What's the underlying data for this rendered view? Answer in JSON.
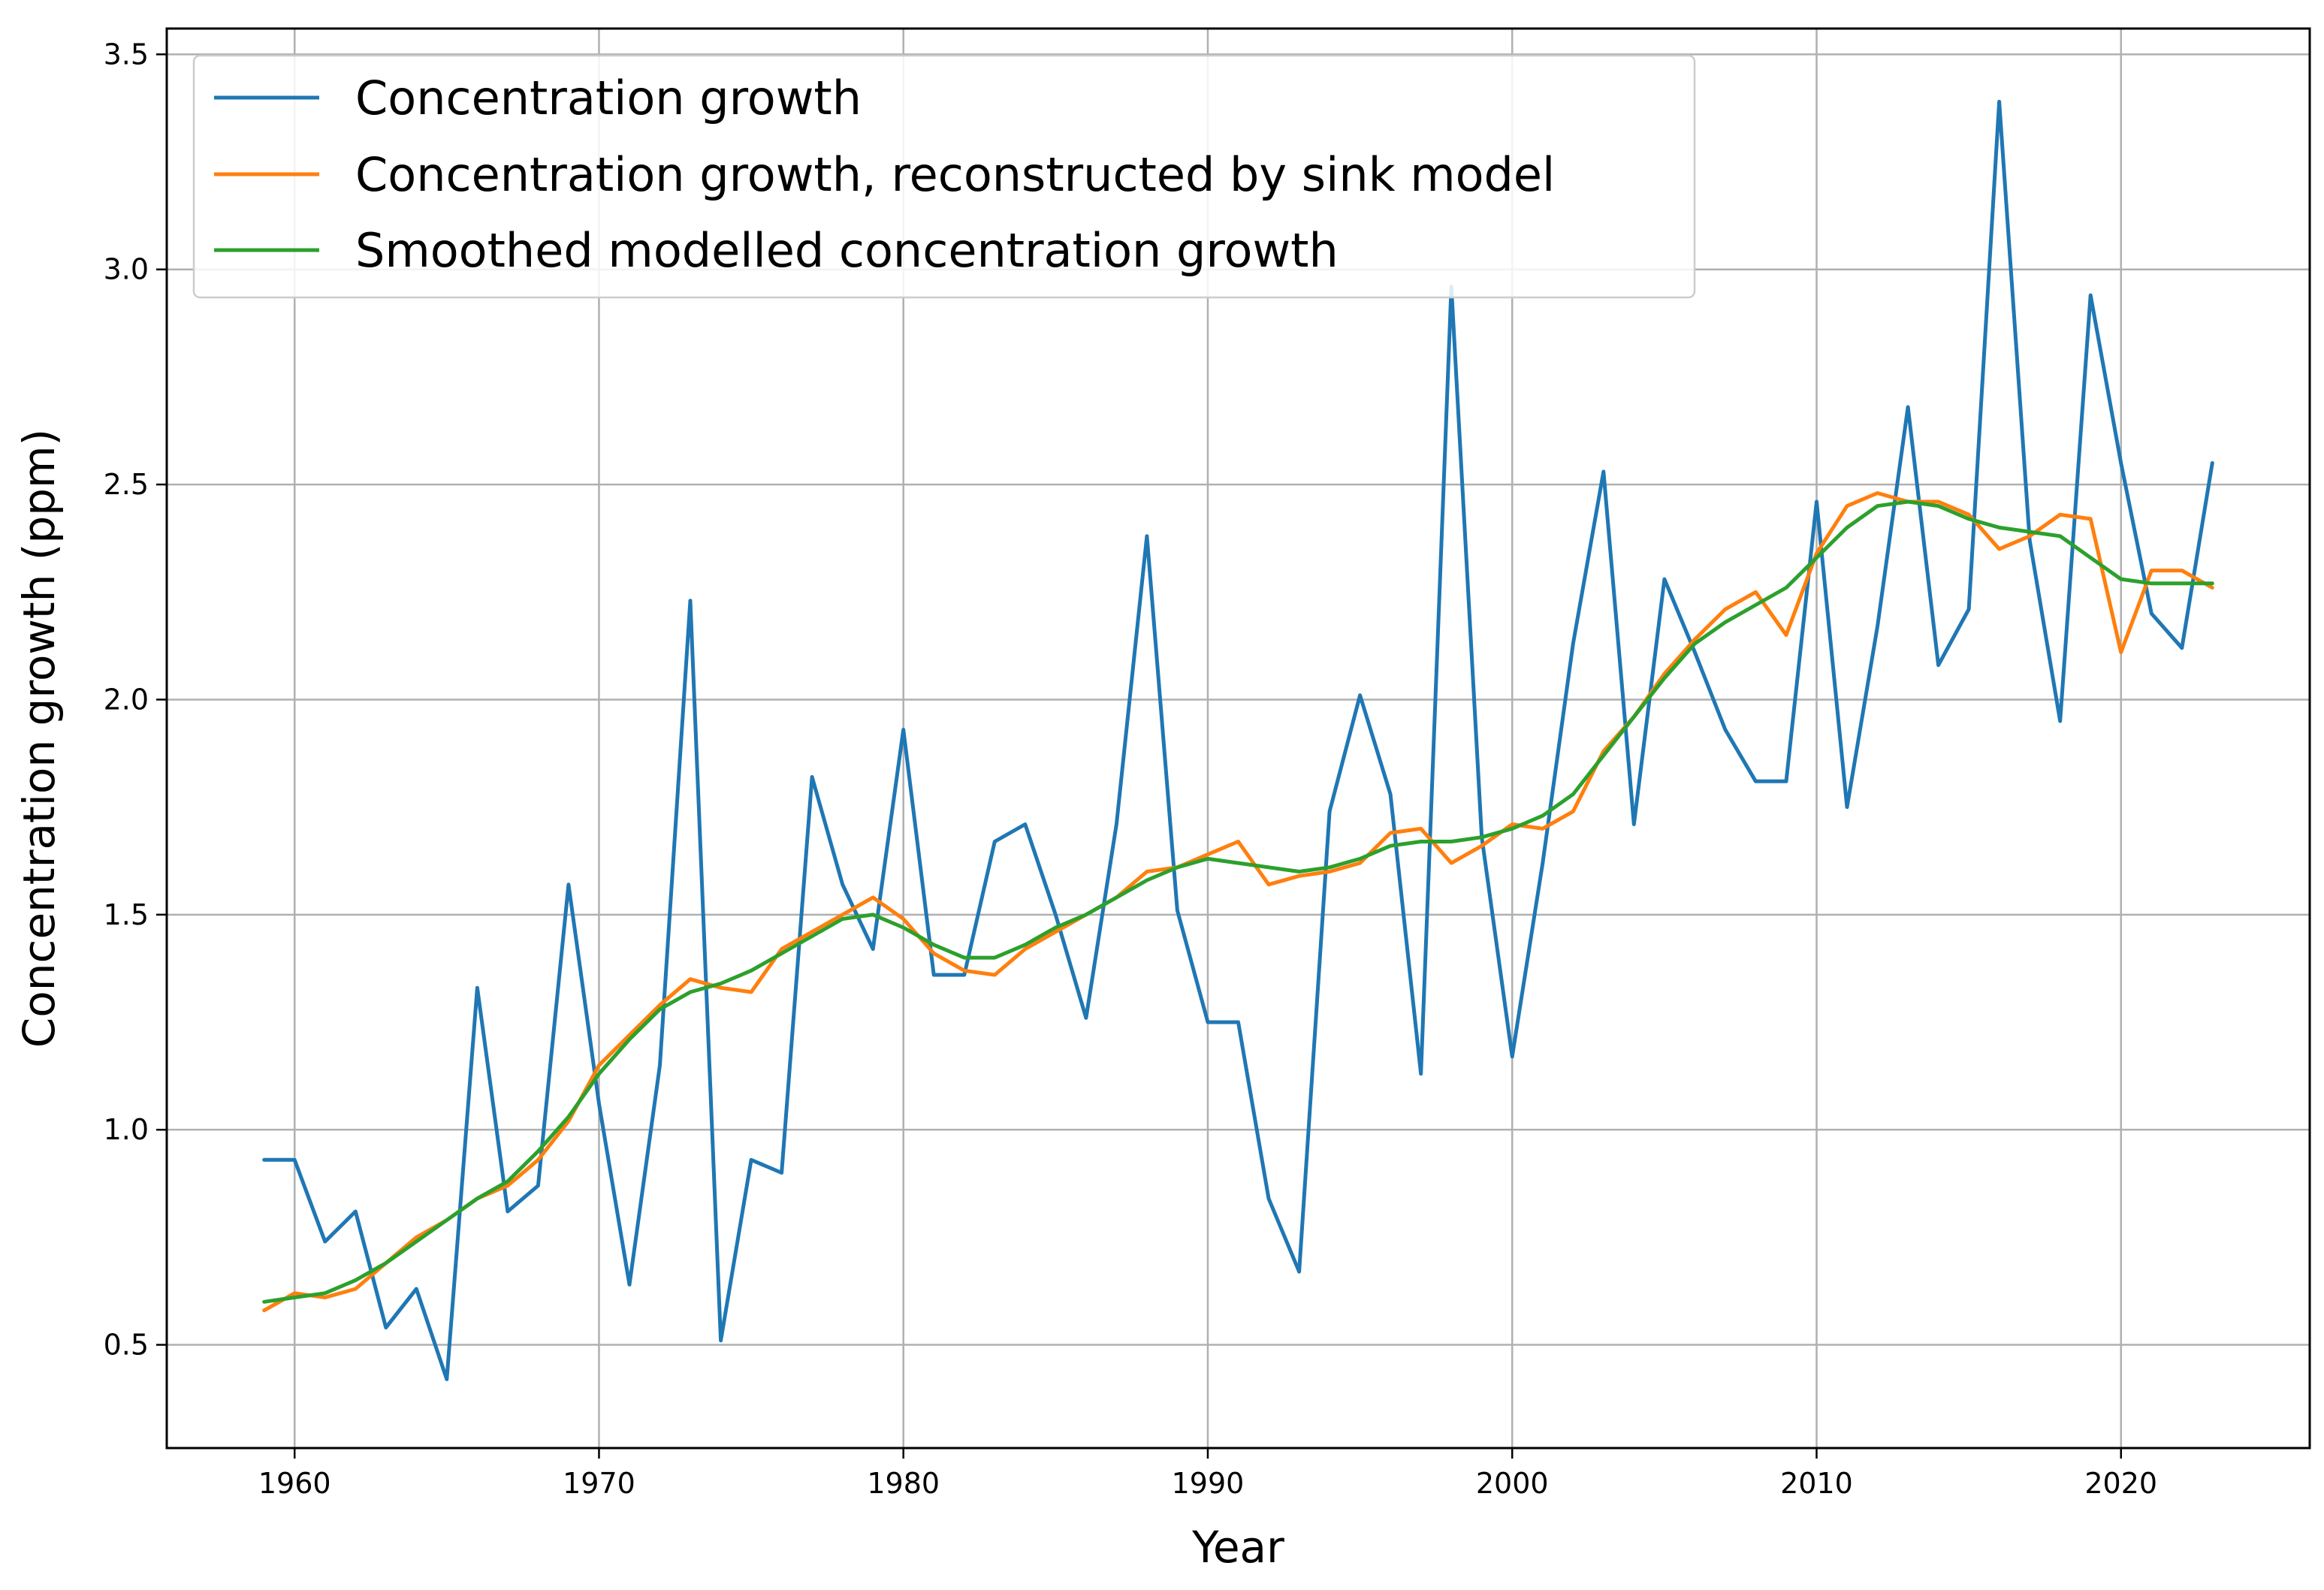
{
  "chart_data": {
    "type": "line",
    "title": "",
    "xlabel": "Year",
    "ylabel": "Concentration growth (ppm)",
    "xlim": [
      1955.8,
      2026.2
    ],
    "ylim": [
      0.26,
      3.56
    ],
    "grid": true,
    "legend_position": "top-left",
    "xticks": [
      1960,
      1970,
      1980,
      1990,
      2000,
      2010,
      2020
    ],
    "xtick_labels": [
      "1960",
      "1970",
      "1980",
      "1990",
      "2000",
      "2010",
      "2020"
    ],
    "yticks": [
      0.5,
      1.0,
      1.5,
      2.0,
      2.5,
      3.0,
      3.5
    ],
    "ytick_labels": [
      "0.5",
      "1.0",
      "1.5",
      "2.0",
      "2.5",
      "3.0",
      "3.5"
    ],
    "x": [
      1959,
      1960,
      1961,
      1962,
      1963,
      1964,
      1965,
      1966,
      1967,
      1968,
      1969,
      1970,
      1971,
      1972,
      1973,
      1974,
      1975,
      1976,
      1977,
      1978,
      1979,
      1980,
      1981,
      1982,
      1983,
      1984,
      1985,
      1986,
      1987,
      1988,
      1989,
      1990,
      1991,
      1992,
      1993,
      1994,
      1995,
      1996,
      1997,
      1998,
      1999,
      2000,
      2001,
      2002,
      2003,
      2004,
      2005,
      2006,
      2007,
      2008,
      2009,
      2010,
      2011,
      2012,
      2013,
      2014,
      2015,
      2016,
      2017,
      2018,
      2019,
      2020,
      2021,
      2022,
      2023
    ],
    "series": [
      {
        "name": "Concentration growth",
        "color": "#1f77b4",
        "values": [
          0.93,
          0.93,
          0.74,
          0.81,
          0.54,
          0.63,
          0.42,
          1.33,
          0.81,
          0.87,
          1.57,
          1.06,
          0.64,
          1.15,
          2.23,
          0.51,
          0.93,
          0.9,
          1.82,
          1.57,
          1.42,
          1.93,
          1.36,
          1.36,
          1.67,
          1.71,
          1.5,
          1.26,
          1.71,
          2.38,
          1.51,
          1.25,
          1.25,
          0.84,
          0.67,
          1.74,
          2.01,
          1.78,
          1.13,
          2.96,
          1.68,
          1.17,
          1.62,
          2.13,
          2.53,
          1.71,
          2.28,
          2.11,
          1.93,
          1.81,
          1.81,
          2.46,
          1.75,
          2.17,
          2.68,
          2.08,
          2.21,
          3.39,
          2.37,
          1.95,
          2.94,
          2.55,
          2.2,
          2.12,
          2.55
        ]
      },
      {
        "name": "Concentration growth, reconstructed by sink model",
        "color": "#ff7f0e",
        "values": [
          0.58,
          0.62,
          0.61,
          0.63,
          0.69,
          0.75,
          0.79,
          0.84,
          0.87,
          0.93,
          1.02,
          1.15,
          1.22,
          1.29,
          1.35,
          1.33,
          1.32,
          1.42,
          1.46,
          1.5,
          1.54,
          1.49,
          1.41,
          1.37,
          1.36,
          1.42,
          1.46,
          1.5,
          1.54,
          1.6,
          1.61,
          1.64,
          1.67,
          1.57,
          1.59,
          1.6,
          1.62,
          1.69,
          1.7,
          1.62,
          1.66,
          1.71,
          1.7,
          1.74,
          1.88,
          1.96,
          2.06,
          2.14,
          2.21,
          2.25,
          2.15,
          2.34,
          2.45,
          2.48,
          2.46,
          2.46,
          2.43,
          2.35,
          2.38,
          2.43,
          2.42,
          2.11,
          2.3,
          2.3,
          2.26
        ]
      },
      {
        "name": "Smoothed modelled concentration growth",
        "color": "#2ca02c",
        "values": [
          0.6,
          0.61,
          0.62,
          0.65,
          0.69,
          0.74,
          0.79,
          0.84,
          0.88,
          0.95,
          1.03,
          1.13,
          1.21,
          1.28,
          1.32,
          1.34,
          1.37,
          1.41,
          1.45,
          1.49,
          1.5,
          1.47,
          1.43,
          1.4,
          1.4,
          1.43,
          1.47,
          1.5,
          1.54,
          1.58,
          1.61,
          1.63,
          1.62,
          1.61,
          1.6,
          1.61,
          1.63,
          1.66,
          1.67,
          1.67,
          1.68,
          1.7,
          1.73,
          1.78,
          1.87,
          1.96,
          2.05,
          2.13,
          2.18,
          2.22,
          2.26,
          2.33,
          2.4,
          2.45,
          2.46,
          2.45,
          2.42,
          2.4,
          2.39,
          2.38,
          2.33,
          2.28,
          2.27,
          2.27,
          2.27
        ]
      }
    ]
  }
}
